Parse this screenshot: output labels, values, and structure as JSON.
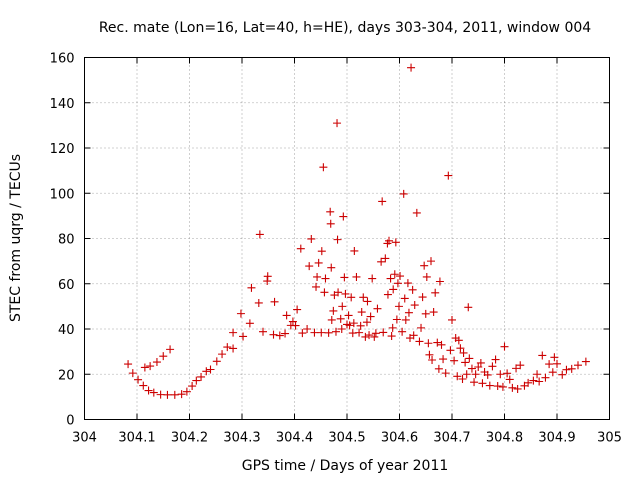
{
  "chart_data": {
    "type": "scatter",
    "title": "Rec. mate (Lon=16, Lat=40, h=HE), days 303-304, 2011, window 004",
    "xlabel": "GPS time / Days of year 2011",
    "ylabel": "STEC from uqrg / TECUs",
    "xlim": [
      304,
      305
    ],
    "ylim": [
      0,
      160
    ],
    "x_ticks": [
      304,
      304.1,
      304.2,
      304.3,
      304.4,
      304.5,
      304.6,
      304.7,
      304.8,
      304.9,
      305
    ],
    "x_tick_labels": [
      "304",
      "304.1",
      "304.2",
      "304.3",
      "304.4",
      "304.5",
      "304.6",
      "304.7",
      "304.8",
      "304.9",
      "305"
    ],
    "y_ticks": [
      0,
      20,
      40,
      60,
      80,
      100,
      120,
      140,
      160
    ],
    "y_tick_labels": [
      "0",
      "20",
      "40",
      "60",
      "80",
      "100",
      "120",
      "140",
      "160"
    ],
    "grid": true,
    "marker": "+",
    "marker_color": "#cc0000",
    "points": [
      [
        304.083,
        24.5
      ],
      [
        304.092,
        20.5
      ],
      [
        304.102,
        17.6
      ],
      [
        304.112,
        15
      ],
      [
        304.122,
        12.8
      ],
      [
        304.132,
        11.9
      ],
      [
        304.145,
        11
      ],
      [
        304.158,
        10.9
      ],
      [
        304.172,
        10.9
      ],
      [
        304.185,
        11.2
      ],
      [
        304.195,
        12.3
      ],
      [
        304.115,
        23
      ],
      [
        304.125,
        23.6
      ],
      [
        304.138,
        25.4
      ],
      [
        304.15,
        28
      ],
      [
        304.163,
        31
      ],
      [
        304.205,
        14.8
      ],
      [
        304.213,
        17.2
      ],
      [
        304.222,
        18.8
      ],
      [
        304.232,
        21.3
      ],
      [
        304.24,
        22.1
      ],
      [
        304.252,
        25.7
      ],
      [
        304.262,
        28.9
      ],
      [
        304.272,
        32
      ],
      [
        304.283,
        31.4
      ],
      [
        304.283,
        38.4
      ],
      [
        304.302,
        36.7
      ],
      [
        304.298,
        46.8
      ],
      [
        304.315,
        42.5
      ],
      [
        304.318,
        58.2
      ],
      [
        304.332,
        51.5
      ],
      [
        304.334,
        81.8
      ],
      [
        304.34,
        38.8
      ],
      [
        304.348,
        61.2
      ],
      [
        304.349,
        63.3
      ],
      [
        304.36,
        37.5
      ],
      [
        304.362,
        52
      ],
      [
        304.372,
        37.1
      ],
      [
        304.382,
        38
      ],
      [
        304.385,
        46
      ],
      [
        304.393,
        41.6
      ],
      [
        304.397,
        43.3
      ],
      [
        304.402,
        41.5
      ],
      [
        304.405,
        48.6
      ],
      [
        304.412,
        75.5
      ],
      [
        304.415,
        38.2
      ],
      [
        304.424,
        40
      ],
      [
        304.428,
        67.8
      ],
      [
        304.432,
        79.8
      ],
      [
        304.438,
        38.4
      ],
      [
        304.441,
        58.6
      ],
      [
        304.443,
        63
      ],
      [
        304.446,
        69.2
      ],
      [
        304.451,
        38.4
      ],
      [
        304.452,
        74.4
      ],
      [
        304.455,
        111.5
      ],
      [
        304.457,
        56.2
      ],
      [
        304.459,
        62.3
      ],
      [
        304.465,
        38.3
      ],
      [
        304.468,
        91.8
      ],
      [
        304.469,
        86.5
      ],
      [
        304.47,
        67.1
      ],
      [
        304.471,
        44
      ],
      [
        304.474,
        48
      ],
      [
        304.476,
        55
      ],
      [
        304.479,
        38.8
      ],
      [
        304.481,
        131
      ],
      [
        304.482,
        79.5
      ],
      [
        304.483,
        56.2
      ],
      [
        304.488,
        44.5
      ],
      [
        304.49,
        40
      ],
      [
        304.491,
        50
      ],
      [
        304.493,
        89.7
      ],
      [
        304.495,
        62.8
      ],
      [
        304.497,
        55.5
      ],
      [
        304.5,
        42
      ],
      [
        304.503,
        46
      ],
      [
        304.505,
        41.6
      ],
      [
        304.508,
        54
      ],
      [
        304.511,
        38.2
      ],
      [
        304.513,
        42.6
      ],
      [
        304.514,
        74.5
      ],
      [
        304.518,
        63
      ],
      [
        304.523,
        38.4
      ],
      [
        304.526,
        41.4
      ],
      [
        304.528,
        47.5
      ],
      [
        304.531,
        54
      ],
      [
        304.535,
        36.5
      ],
      [
        304.538,
        43
      ],
      [
        304.539,
        52.2
      ],
      [
        304.542,
        37.3
      ],
      [
        304.545,
        45.5
      ],
      [
        304.548,
        62.3
      ],
      [
        304.552,
        36.5
      ],
      [
        304.555,
        38.1
      ],
      [
        304.558,
        49
      ],
      [
        304.565,
        69.7
      ],
      [
        304.567,
        96.4
      ],
      [
        304.569,
        38.5
      ],
      [
        304.573,
        71.2
      ],
      [
        304.577,
        77.8
      ],
      [
        304.578,
        55.2
      ],
      [
        304.58,
        79
      ],
      [
        304.583,
        62.3
      ],
      [
        304.585,
        36.9
      ],
      [
        304.587,
        40.5
      ],
      [
        304.588,
        57.5
      ],
      [
        304.591,
        64.2
      ],
      [
        304.593,
        78.3
      ],
      [
        304.595,
        44.2
      ],
      [
        304.597,
        60.2
      ],
      [
        304.599,
        50
      ],
      [
        304.601,
        63.4
      ],
      [
        304.605,
        38.8
      ],
      [
        304.608,
        99.7
      ],
      [
        304.61,
        53.5
      ],
      [
        304.612,
        44
      ],
      [
        304.616,
        60.3
      ],
      [
        304.618,
        47.2
      ],
      [
        304.62,
        36
      ],
      [
        304.622,
        155.5
      ],
      [
        304.625,
        57.3
      ],
      [
        304.627,
        37.2
      ],
      [
        304.629,
        50.6
      ],
      [
        304.633,
        91.3
      ],
      [
        304.638,
        34.5
      ],
      [
        304.641,
        40.5
      ],
      [
        304.644,
        54.1
      ],
      [
        304.647,
        68
      ],
      [
        304.65,
        46.7
      ],
      [
        304.652,
        63
      ],
      [
        304.655,
        33.7
      ],
      [
        304.657,
        28.6
      ],
      [
        304.66,
        70
      ],
      [
        304.662,
        26.3
      ],
      [
        304.665,
        47.5
      ],
      [
        304.668,
        56
      ],
      [
        304.672,
        34
      ],
      [
        304.675,
        22.4
      ],
      [
        304.677,
        61
      ],
      [
        304.68,
        33
      ],
      [
        304.683,
        26.7
      ],
      [
        304.688,
        20.5
      ],
      [
        304.693,
        107.8
      ],
      [
        304.697,
        30.6
      ],
      [
        304.7,
        44
      ],
      [
        304.704,
        26
      ],
      [
        304.707,
        36
      ],
      [
        304.71,
        19.1
      ],
      [
        304.713,
        35
      ],
      [
        304.716,
        31.5
      ],
      [
        304.72,
        17.9
      ],
      [
        304.722,
        29.4
      ],
      [
        304.725,
        25.2
      ],
      [
        304.728,
        20
      ],
      [
        304.731,
        49.6
      ],
      [
        304.733,
        27
      ],
      [
        304.738,
        22.5
      ],
      [
        304.742,
        16.5
      ],
      [
        304.745,
        20
      ],
      [
        304.75,
        23.2
      ],
      [
        304.755,
        25
      ],
      [
        304.758,
        16
      ],
      [
        304.762,
        21
      ],
      [
        304.768,
        19.7
      ],
      [
        304.772,
        15
      ],
      [
        304.777,
        23.5
      ],
      [
        304.783,
        26.5
      ],
      [
        304.787,
        14.8
      ],
      [
        304.792,
        20
      ],
      [
        304.797,
        14.4
      ],
      [
        304.8,
        32.2
      ],
      [
        304.805,
        20.4
      ],
      [
        304.81,
        17.7
      ],
      [
        304.815,
        14
      ],
      [
        304.822,
        22.6
      ],
      [
        304.825,
        13.5
      ],
      [
        304.83,
        24
      ],
      [
        304.838,
        14.9
      ],
      [
        304.845,
        16.2
      ],
      [
        304.855,
        17.2
      ],
      [
        304.862,
        20
      ],
      [
        304.866,
        16.8
      ],
      [
        304.872,
        28.3
      ],
      [
        304.878,
        18.5
      ],
      [
        304.885,
        24.5
      ],
      [
        304.892,
        20.9
      ],
      [
        304.895,
        27.5
      ],
      [
        304.9,
        24.6
      ],
      [
        304.91,
        19.8
      ],
      [
        304.918,
        22
      ],
      [
        304.928,
        22.4
      ],
      [
        304.94,
        24
      ],
      [
        304.955,
        25.6
      ]
    ]
  }
}
